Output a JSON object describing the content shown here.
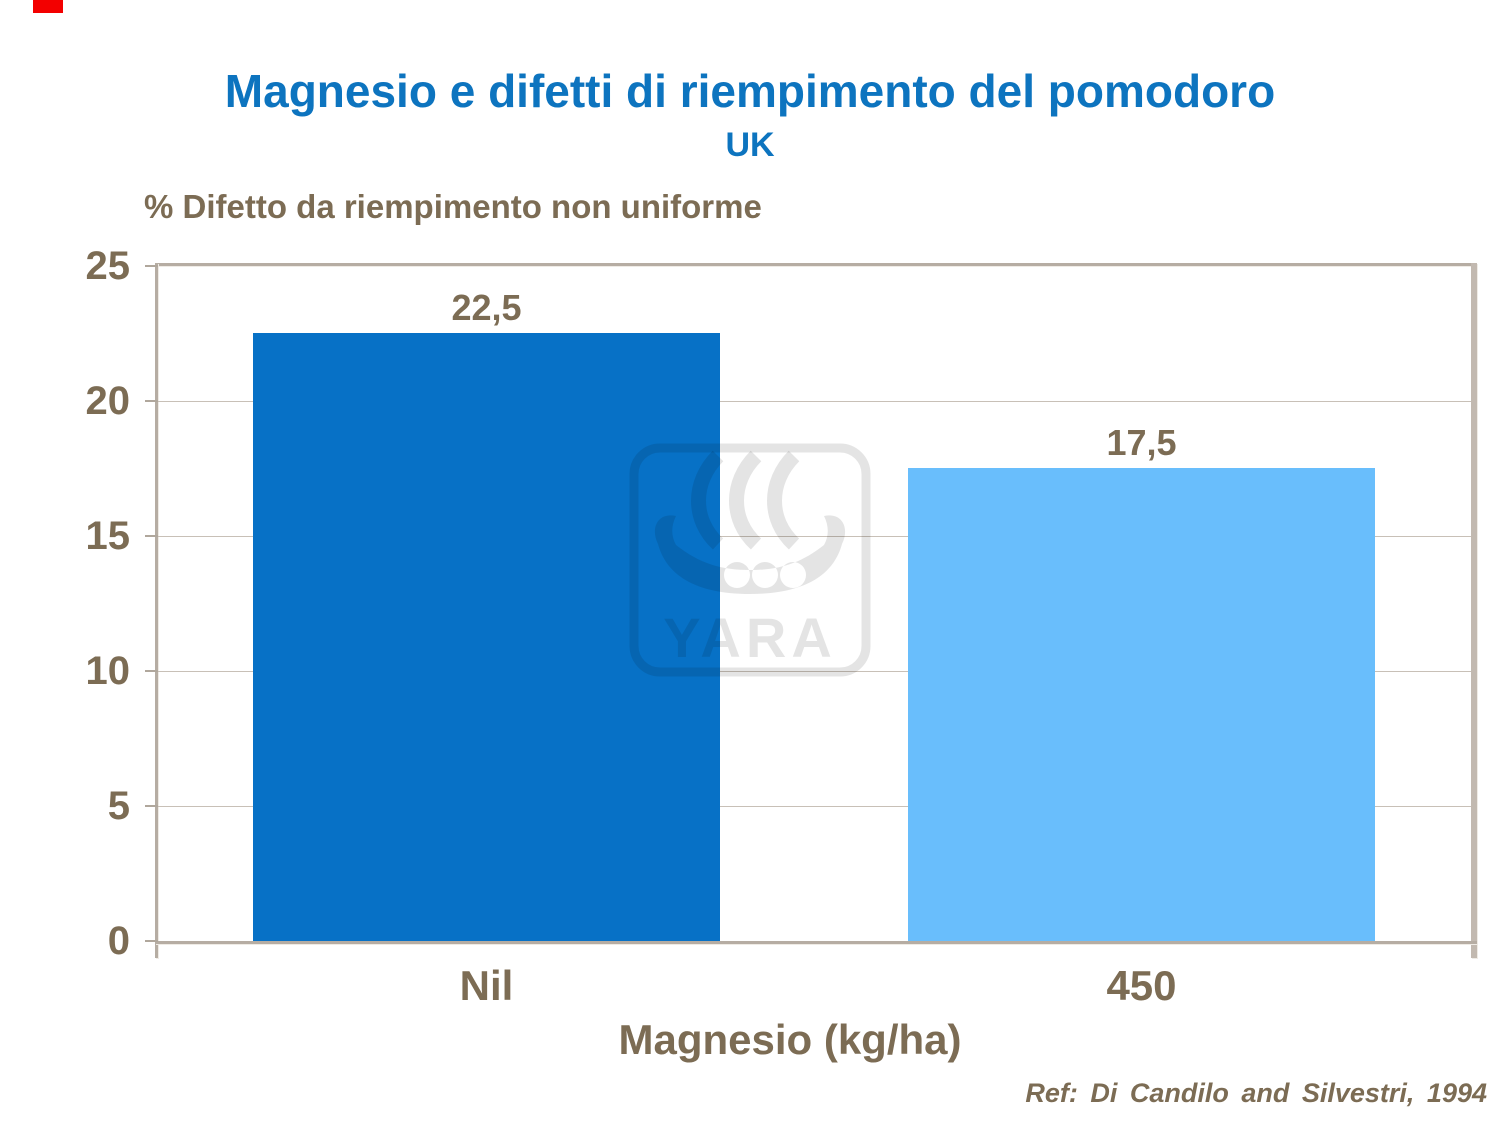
{
  "slide": {
    "title": "Magnesio e difetti di riempimento del pomodoro",
    "subtitle": "UK",
    "chart_header": "% Difetto da riempimento non uniforme",
    "x_axis_title": "Magnesio (kg/ha)",
    "reference": "Ref: Di Candilo and Silvestri, 1994",
    "watermark_text": "YARA"
  },
  "y_axis": {
    "ticks": [
      "25",
      "20",
      "15",
      "10",
      "5",
      "0"
    ]
  },
  "bars": [
    {
      "label": "Nil",
      "value_label": "22,5",
      "value": 22.5,
      "color": "#0771c6"
    },
    {
      "label": "450",
      "value_label": "17,5",
      "value": 17.5,
      "color": "#69befc"
    }
  ],
  "colors": {
    "title_blue": "#0d74bf",
    "text_brown": "#7c6c54",
    "bar_dark_blue": "#0771c6",
    "bar_light_blue": "#69befc",
    "gridline": "#c8c0b7",
    "axis_gray": "#b6ada3",
    "marker_red": "#f30000",
    "watermark_gray": "#e5e5e5"
  },
  "chart_data": {
    "type": "bar",
    "categories": [
      "Nil",
      "450"
    ],
    "values": [
      22.5,
      17.5
    ],
    "data_labels": [
      "22,5",
      "17,5"
    ],
    "title": "Magnesio e difetti di riempimento del pomodoro",
    "subtitle": "UK",
    "xlabel": "Magnesio (kg/ha)",
    "ylabel": "% Difetto da riempimento non uniforme",
    "ylim": [
      0,
      25
    ],
    "ytick_step": 5,
    "grid": true,
    "legend": false,
    "reference": "Ref: Di Candilo and Silvestri, 1994"
  }
}
